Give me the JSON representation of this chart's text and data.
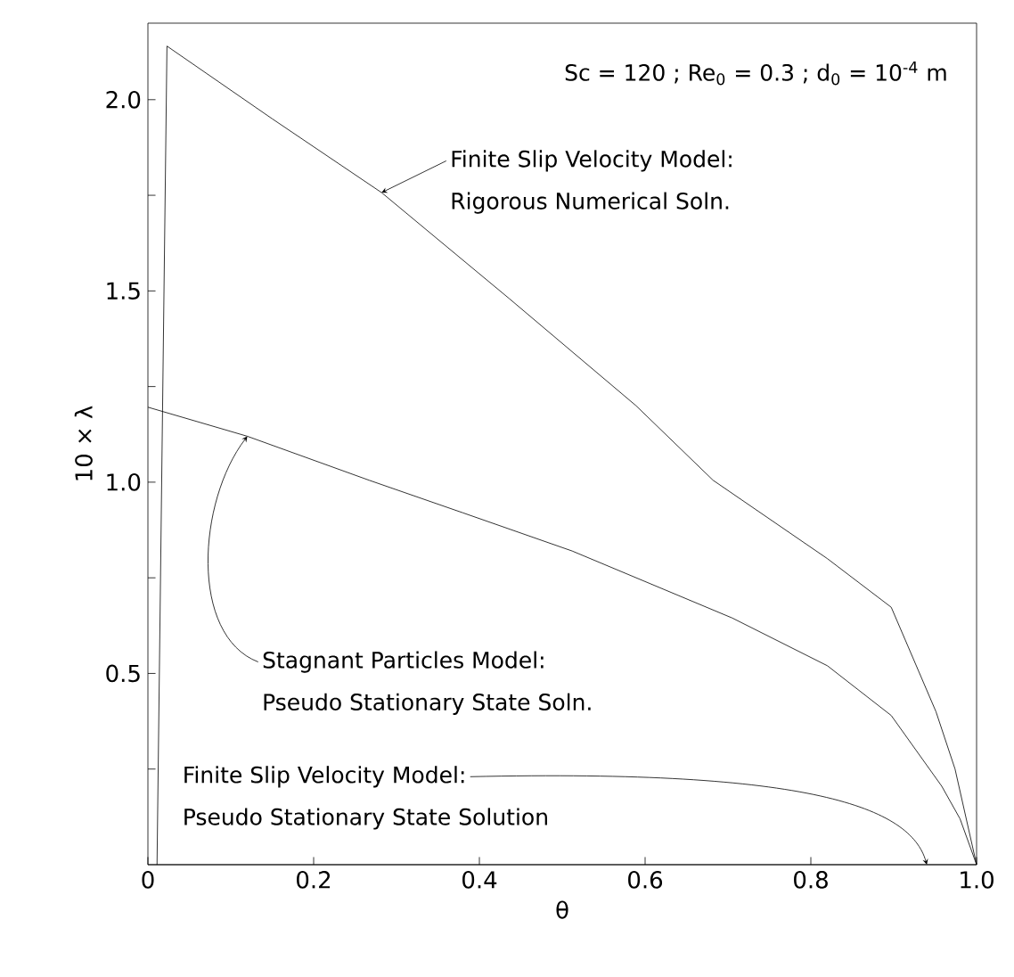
{
  "chart_data": {
    "type": "line",
    "xlabel": "θ",
    "ylabel": "10 × λ",
    "xlim": [
      0,
      1
    ],
    "ylim": [
      0,
      2.2
    ],
    "xticks": [
      0,
      0.2,
      0.4,
      0.6,
      0.8,
      {
        "value": 1,
        "label": "1.0"
      }
    ],
    "yticks": [
      {
        "value": 0.25,
        "label": null
      },
      0.5,
      {
        "value": 0.75,
        "label": null
      },
      {
        "value": 1,
        "label": "1.0"
      },
      {
        "value": 1.25,
        "label": null
      },
      1.5,
      {
        "value": 1.75,
        "label": null
      },
      {
        "value": 2,
        "label": "2.0"
      }
    ],
    "marker": "none",
    "line_style": "solid",
    "grid": false,
    "series": [
      {
        "color": "#000000",
        "x": [
          0.011,
          0.023,
          0.15,
          0.282,
          0.436,
          0.589,
          0.682,
          0.82,
          0.897,
          0.951,
          0.974,
          1.0
        ],
        "values": [
          0,
          2.14,
          1.95,
          1.757,
          1.48,
          1.2,
          1.005,
          0.8,
          0.673,
          0.4,
          0.25,
          0
        ]
      },
      {
        "color": "#000000",
        "x": [
          0,
          0.12,
          0.267,
          0.38,
          0.512,
          0.705,
          0.82,
          0.897,
          0.958,
          0.98,
          1.0
        ],
        "values": [
          1.196,
          1.12,
          1.005,
          0.92,
          0.82,
          0.645,
          0.52,
          0.39,
          0.205,
          0.12,
          0
        ]
      },
      {
        "color": "#000000",
        "x": [
          0,
          1.0
        ],
        "values": [
          0,
          0
        ]
      }
    ],
    "annotations": [
      "Sc = 120 ; Re$_{0}$ = 0.3 ; d$_{0}$ = 10$^{-4}$ m",
      {
        "text": "Finite Slip Velocity Model:",
        "x": 0.282,
        "y": 1.757
      },
      "Rigorous Numerical Soln.",
      {
        "text": "Stagnant Particles Model:",
        "x": 0.12,
        "y": 1.12
      },
      "Pseudo Stationary State Soln.",
      {
        "text": "Finite Slip Velocity Model:",
        "x": 0.94,
        "y": 0
      },
      "Pseudo Stationary State Solution"
    ]
  }
}
